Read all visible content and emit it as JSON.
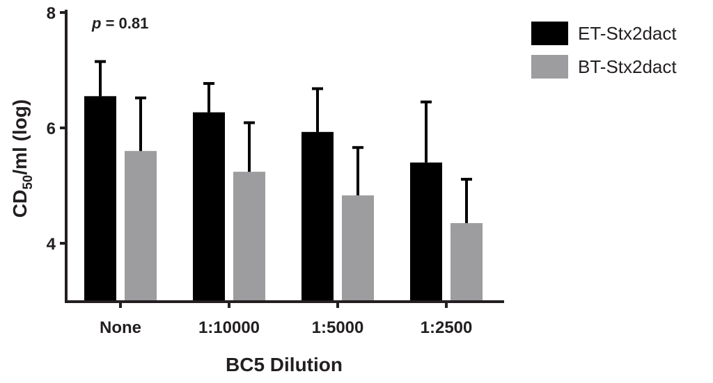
{
  "chart_data": {
    "type": "bar",
    "categories": [
      "None",
      "1:10000",
      "1:5000",
      "1:2500"
    ],
    "series": [
      {
        "name": "ET-Stx2dact",
        "color": "#000000",
        "values": [
          6.55,
          6.27,
          5.93,
          5.4
        ],
        "error": [
          0.6,
          0.5,
          0.75,
          1.05
        ]
      },
      {
        "name": "BT-Stx2dact",
        "color": "#9d9da0",
        "values": [
          5.6,
          5.24,
          4.83,
          4.35
        ],
        "error": [
          0.92,
          0.85,
          0.83,
          0.76
        ]
      }
    ],
    "y_ticks": [
      4,
      6,
      8
    ],
    "ylim": [
      3,
      8
    ],
    "xlabel": "BC5 Dilution",
    "ylabel_parts": {
      "base": "CD",
      "sub": "50",
      "rest": "/ml (log)"
    },
    "annotation": {
      "p": "p",
      "rest": " = 0.81"
    },
    "legend_position": "top-right"
  }
}
